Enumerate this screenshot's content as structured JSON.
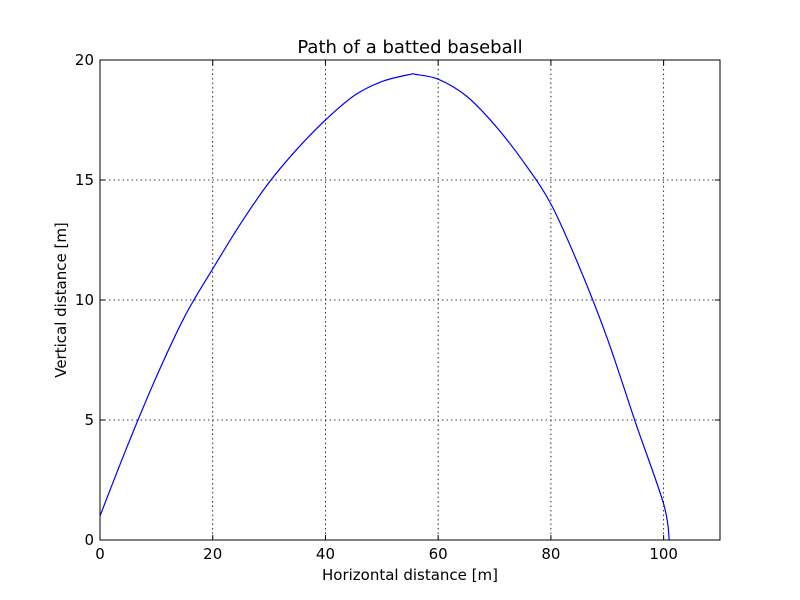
{
  "chart_data": {
    "type": "line",
    "title": "Path of a batted baseball",
    "xlabel": "Horizontal distance [m]",
    "ylabel": "Vertical distance [m]",
    "xlim": [
      0,
      110
    ],
    "ylim": [
      0,
      20
    ],
    "x_ticks": [
      0,
      20,
      40,
      60,
      80,
      100
    ],
    "y_ticks": [
      0,
      5,
      10,
      15,
      20
    ],
    "grid": true,
    "series": [
      {
        "color": "#0000ff",
        "x": [
          0,
          5,
          10,
          15,
          20,
          25,
          30,
          35,
          40,
          45,
          50,
          55,
          56,
          60,
          65,
          70,
          75,
          80,
          85,
          90,
          95,
          100,
          101
        ],
        "y": [
          1.0,
          4.0,
          6.8,
          9.3,
          11.3,
          13.2,
          14.9,
          16.3,
          17.5,
          18.5,
          19.1,
          19.4,
          19.4,
          19.2,
          18.5,
          17.3,
          15.8,
          14.0,
          11.4,
          8.4,
          4.9,
          1.5,
          0.0
        ]
      }
    ]
  }
}
